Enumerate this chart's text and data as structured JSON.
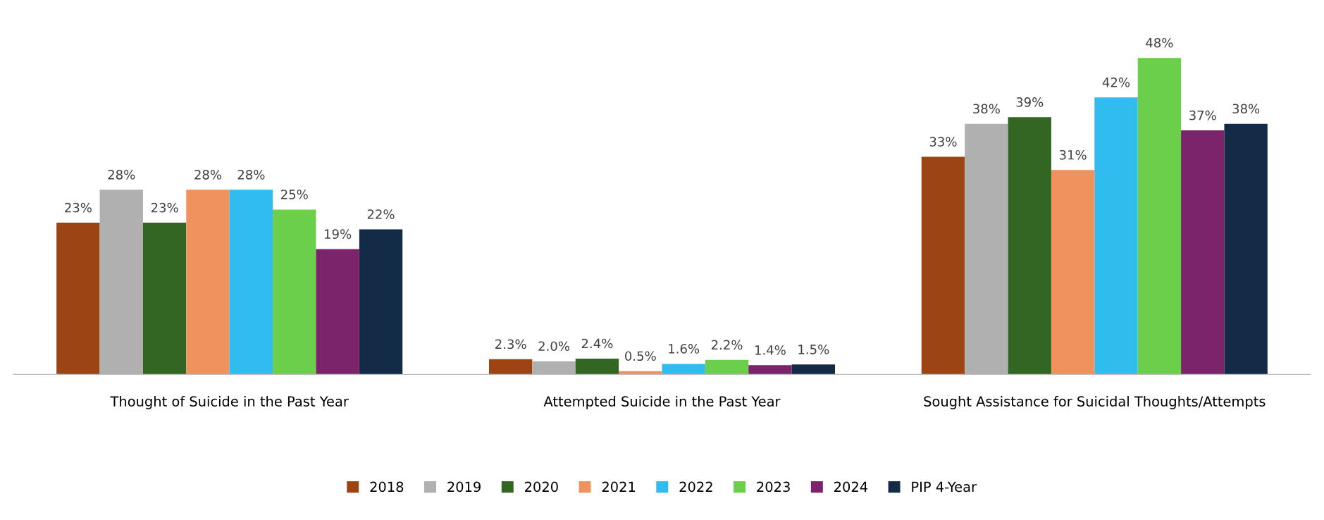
{
  "chart_data": {
    "type": "bar",
    "categories": [
      "Thought of Suicide in the Past Year",
      "Attempted Suicide in the Past Year",
      "Sought Assistance for Suicidal Thoughts/Attempts"
    ],
    "series": [
      {
        "name": "2018",
        "color": "#9c4414",
        "values": [
          23,
          2.3,
          33
        ],
        "value_labels": [
          "23%",
          "2.3%",
          "33%"
        ]
      },
      {
        "name": "2019",
        "color": "#b0b0b0",
        "values": [
          28,
          2.0,
          38
        ],
        "value_labels": [
          "28%",
          "2.0%",
          "38%"
        ]
      },
      {
        "name": "2020",
        "color": "#336622",
        "values": [
          23,
          2.4,
          39
        ],
        "value_labels": [
          "23%",
          "2.4%",
          "39%"
        ]
      },
      {
        "name": "2021",
        "color": "#f0925e",
        "values": [
          28,
          0.5,
          31
        ],
        "value_labels": [
          "28%",
          "0.5%",
          "31%"
        ]
      },
      {
        "name": "2022",
        "color": "#30bcef",
        "values": [
          28,
          1.6,
          42
        ],
        "value_labels": [
          "28%",
          "1.6%",
          "42%"
        ]
      },
      {
        "name": "2023",
        "color": "#6ccf4c",
        "values": [
          25,
          2.2,
          48
        ],
        "value_labels": [
          "25%",
          "2.2%",
          "48%"
        ]
      },
      {
        "name": "2024",
        "color": "#7b246c",
        "values": [
          19,
          1.4,
          37
        ],
        "value_labels": [
          "19%",
          "1.4%",
          "37%"
        ]
      },
      {
        "name": "PIP 4-Year",
        "color": "#142b47",
        "values": [
          22,
          1.5,
          38
        ],
        "value_labels": [
          "22%",
          "1.5%",
          "38%"
        ]
      }
    ],
    "legend": "bottom",
    "grid": false
  }
}
